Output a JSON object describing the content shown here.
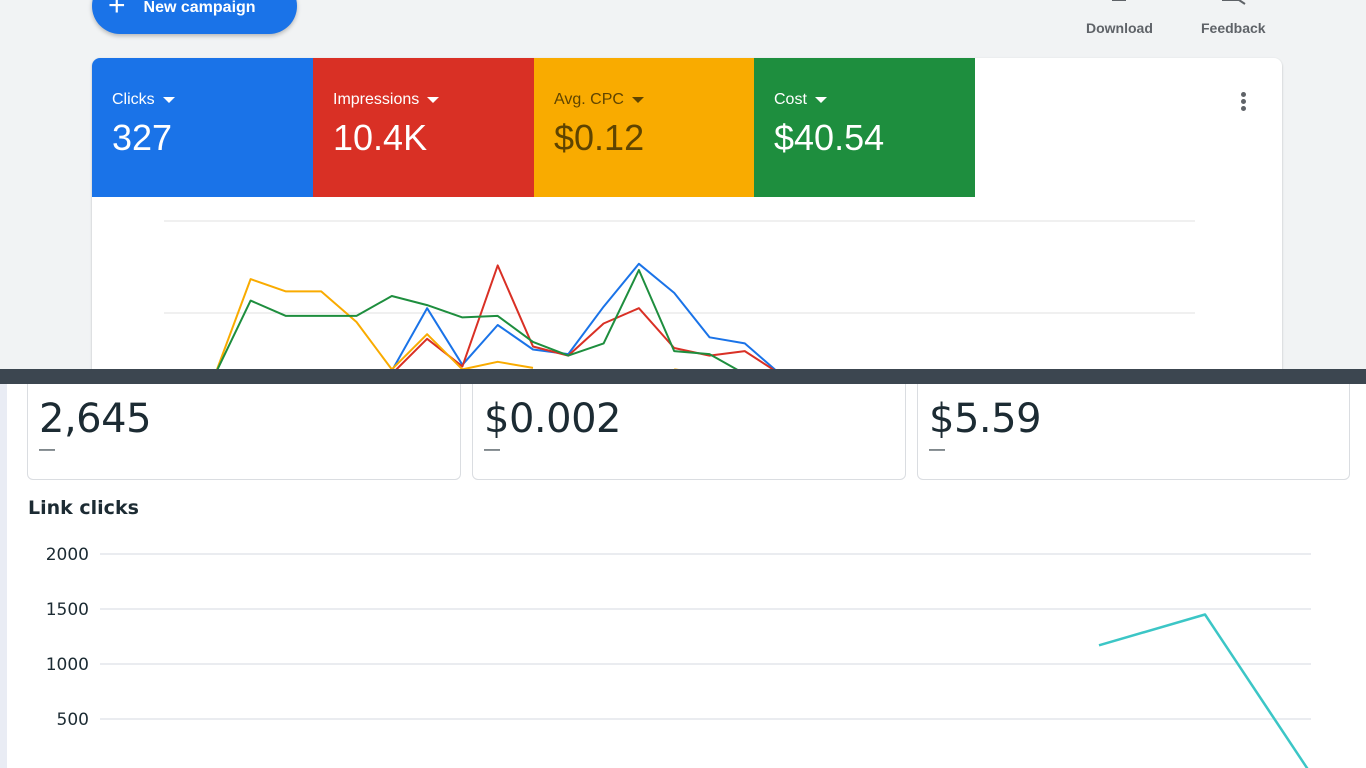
{
  "toolbar": {
    "new_campaign_label": "New campaign",
    "download_label": "Download",
    "feedback_label": "Feedback"
  },
  "metrics": [
    {
      "label": "Clicks",
      "value": "327",
      "color": "#1a73e8"
    },
    {
      "label": "Impressions",
      "value": "10.4K",
      "color": "#d93025"
    },
    {
      "label": "Avg. CPC",
      "value": "$0.12",
      "color": "#f9ab00"
    },
    {
      "label": "Cost",
      "value": "$40.54",
      "color": "#1e8e3e"
    }
  ],
  "stats": [
    {
      "value": "2,645",
      "delta": "—"
    },
    {
      "value": "$0.002",
      "delta": "—"
    },
    {
      "value": "$5.59",
      "delta": "—"
    }
  ],
  "link_clicks": {
    "title": "Link clicks"
  },
  "chart_data": [
    {
      "type": "line",
      "title": "",
      "series": [
        {
          "name": "Clicks",
          "color": "#1a73e8",
          "values": [
            null,
            null,
            0.0,
            0.0,
            0.0,
            0.0,
            0.02,
            0.43,
            0.06,
            0.32,
            0.16,
            0.13,
            0.44,
            0.72,
            0.53,
            0.24,
            0.2,
            0.0
          ]
        },
        {
          "name": "Impressions",
          "color": "#d93025",
          "values": [
            null,
            null,
            null,
            null,
            null,
            null,
            0.0,
            0.23,
            0.05,
            0.71,
            0.18,
            0.12,
            0.33,
            0.43,
            0.17,
            0.12,
            0.15,
            0.0
          ]
        },
        {
          "name": "Avg. CPC",
          "color": "#f9ab00",
          "values": [
            null,
            0.0,
            0.62,
            0.54,
            0.54,
            0.34,
            0.03,
            0.26,
            0.03,
            0.08,
            0.04,
            null,
            null,
            null,
            0.03,
            0.0,
            null,
            null
          ]
        },
        {
          "name": "Cost",
          "color": "#1e8e3e",
          "values": [
            null,
            0.0,
            0.48,
            0.38,
            0.38,
            0.38,
            0.51,
            0.45,
            0.37,
            0.38,
            0.21,
            0.12,
            0.2,
            0.68,
            0.15,
            0.13,
            0.0,
            null
          ]
        }
      ],
      "x": [
        0,
        1,
        2,
        3,
        4,
        5,
        6,
        7,
        8,
        9,
        10,
        11,
        12,
        13,
        14,
        15,
        16,
        17
      ]
    },
    {
      "type": "line",
      "title": "Link clicks",
      "yticks": [
        2000,
        1500,
        1000,
        500
      ],
      "ylim": [
        0,
        2000
      ],
      "grid": true,
      "series": [
        {
          "name": "",
          "color": "#3cc6c6",
          "values": [
            1170,
            1450,
            0
          ]
        }
      ],
      "x": [
        10,
        11,
        12
      ]
    }
  ]
}
